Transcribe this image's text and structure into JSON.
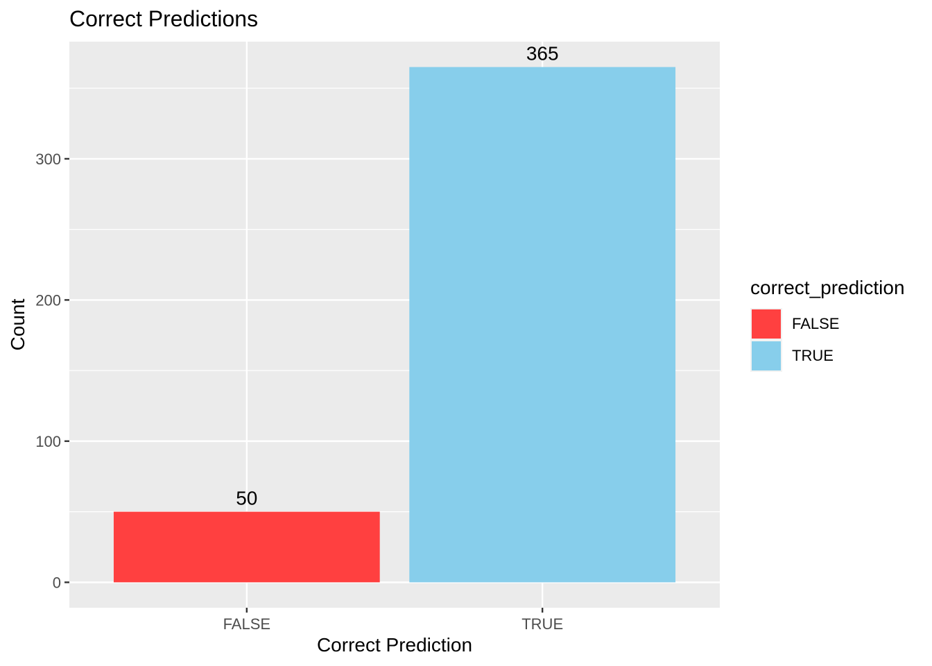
{
  "chart_data": {
    "type": "bar",
    "title": "Correct Predictions",
    "xlabel": "Correct Prediction",
    "ylabel": "Count",
    "categories": [
      "FALSE",
      "TRUE"
    ],
    "values": [
      50,
      365
    ],
    "data_labels": [
      "50",
      "365"
    ],
    "colors": [
      "#ff4040",
      "#87ceeb"
    ],
    "ylim": [
      -18,
      383
    ],
    "yticks": [
      0,
      100,
      200,
      300
    ],
    "ytick_labels": [
      "0",
      "100",
      "200",
      "300"
    ],
    "grid": true,
    "panel_background": "#ebebeb",
    "gridline_color": "#ffffff",
    "legend": {
      "title": "correct_prediction",
      "placement": "right",
      "entries": [
        {
          "label": "FALSE",
          "color": "#ff4040"
        },
        {
          "label": "TRUE",
          "color": "#87ceeb"
        }
      ]
    }
  }
}
